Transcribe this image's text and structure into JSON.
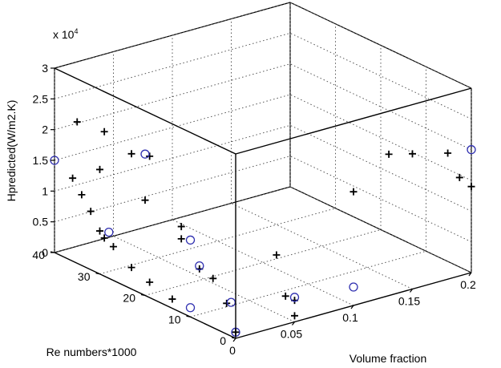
{
  "chart_data": {
    "type": "scatter",
    "dimensions": 3,
    "title": "",
    "exponent_label": "x 10",
    "exponent_power": "4",
    "zlabel": "Hpredicted(W/m2.K)",
    "xlabel": "Volume fraction",
    "ylabel": "Re numbers*1000",
    "xlim": [
      0,
      0.2
    ],
    "ylim": [
      0,
      40
    ],
    "zlim": [
      0,
      30000
    ],
    "x_ticks": [
      "0",
      "0.05",
      "0.1",
      "0.15",
      "0.2"
    ],
    "y_ticks": [
      "0",
      "10",
      "20",
      "30",
      "40"
    ],
    "z_ticks": [
      "0",
      "0.5",
      "1",
      "1.5",
      "2",
      "2.5",
      "3"
    ],
    "grid": true,
    "box": true,
    "series": [
      {
        "name": "",
        "marker": "plus",
        "color": "#000000",
        "points": [
          [
            0.0,
            36,
            13500
          ],
          [
            0.0,
            34,
            11500
          ],
          [
            0.0,
            32,
            9500
          ],
          [
            0.0,
            30,
            7000
          ],
          [
            0.0,
            29,
            6200
          ],
          [
            0.0,
            27,
            5500
          ],
          [
            0.0,
            23,
            3500
          ],
          [
            0.0,
            19,
            2500
          ],
          [
            0.0,
            14,
            1500
          ],
          [
            0.0,
            35,
            23000
          ],
          [
            0.0,
            29,
            23500
          ],
          [
            0.0,
            19,
            23000
          ],
          [
            0.0,
            23,
            22000
          ],
          [
            0.0,
            30,
            17000
          ],
          [
            0.0,
            20,
            15500
          ],
          [
            0.0,
            12,
            12000
          ],
          [
            0.0,
            12,
            14000
          ],
          [
            0.0,
            8,
            8500
          ],
          [
            0.0,
            5,
            8000
          ],
          [
            0.0,
            2,
            5000
          ],
          [
            0.0,
            0,
            1000
          ],
          [
            0.05,
            4,
            9500
          ],
          [
            0.05,
            2,
            3500
          ],
          [
            0.05,
            0,
            3500
          ],
          [
            0.05,
            0,
            1000
          ],
          [
            0.1,
            0,
            18500
          ],
          [
            0.13,
            0,
            23000
          ],
          [
            0.15,
            0,
            22000
          ],
          [
            0.18,
            0,
            20500
          ],
          [
            0.19,
            0,
            16000
          ],
          [
            0.2,
            0,
            14000
          ]
        ]
      },
      {
        "name": "",
        "marker": "circle",
        "color": "#3030b0",
        "points": [
          [
            0.0,
            40,
            15000
          ],
          [
            0.0,
            28,
            7500
          ],
          [
            0.0,
            20,
            23000
          ],
          [
            0.0,
            10,
            12500
          ],
          [
            0.0,
            8,
            9000
          ],
          [
            0.0,
            1,
            5500
          ],
          [
            0.0,
            10,
            1500
          ],
          [
            0.0,
            0,
            1000
          ],
          [
            0.05,
            0,
            4000
          ],
          [
            0.1,
            0,
            3000
          ],
          [
            0.2,
            0,
            20000
          ]
        ]
      }
    ]
  }
}
